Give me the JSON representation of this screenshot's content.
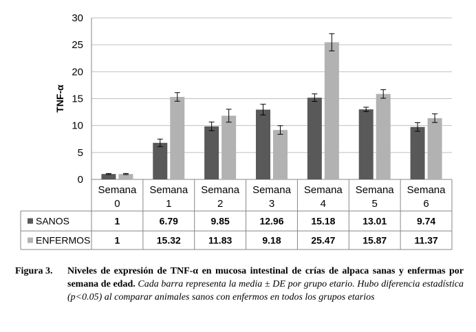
{
  "chart_data": {
    "type": "bar",
    "ylabel": "TNF-α",
    "ylim": [
      0,
      30
    ],
    "yticks": [
      0,
      5,
      10,
      15,
      20,
      25,
      30
    ],
    "grid": true,
    "legend": "table-below",
    "categories": [
      {
        "line1": "Semana",
        "line2": "0"
      },
      {
        "line1": "Semana",
        "line2": "1"
      },
      {
        "line1": "Semana",
        "line2": "2"
      },
      {
        "line1": "Semana",
        "line2": "3"
      },
      {
        "line1": "Semana",
        "line2": "4"
      },
      {
        "line1": "Semana",
        "line2": "5"
      },
      {
        "line1": "Semana",
        "line2": "6"
      }
    ],
    "series": [
      {
        "name": "SANOS",
        "color": "#595959",
        "values": [
          1,
          6.79,
          9.85,
          12.96,
          15.18,
          13.01,
          9.74
        ],
        "labels": [
          "1",
          "6.79",
          "9.85",
          "12.96",
          "15.18",
          "13.01",
          "9.74"
        ],
        "errors": [
          0.1,
          0.7,
          0.8,
          1.0,
          0.7,
          0.4,
          0.8
        ]
      },
      {
        "name": "ENFERMOS",
        "color": "#b2b2b2",
        "values": [
          1,
          15.32,
          11.83,
          9.18,
          25.47,
          15.87,
          11.37
        ],
        "labels": [
          "1",
          "15.32",
          "11.83",
          "9.18",
          "25.47",
          "15.87",
          "11.37"
        ],
        "errors": [
          0.1,
          0.8,
          1.2,
          0.8,
          1.6,
          0.8,
          0.8
        ]
      }
    ]
  },
  "caption": {
    "label": "Figura 3.",
    "bold_text": "Niveles de expresión de TNF-α en mucosa intestinal de crías de alpaca sanas y enfermas por semana de edad.",
    "italic_text": "Cada barra representa la media ± DE por grupo etario. Hubo diferencia estadística (p<0.05) al comparar animales sanos con enfermos en todos los grupos etarios"
  }
}
